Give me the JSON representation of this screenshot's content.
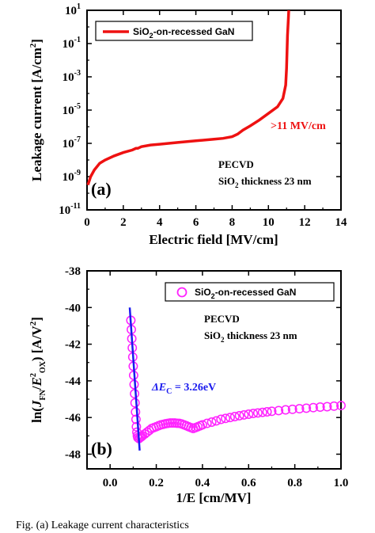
{
  "chart_data": [
    {
      "panel": "(a)",
      "type": "line",
      "xlabel": "Electric field [MV/cm]",
      "ylabel": "Leakage current [A/cm²]",
      "ylabel_parts": [
        "Leakage current [A/cm",
        "2",
        "]"
      ],
      "xlim": [
        0,
        14
      ],
      "ylim_log10": [
        -11,
        1
      ],
      "yscale": "log",
      "x_ticks": [
        "0",
        "2",
        "4",
        "6",
        "8",
        "10",
        "12",
        "14"
      ],
      "y_ticks_exponents": [
        "1",
        "-1",
        "-3",
        "-5",
        "-7",
        "-9",
        "-11"
      ],
      "y_tick_base": "10",
      "legend_position": "top-left",
      "series": [
        {
          "name": "SiO₂-on-recessed GaN",
          "name_parts": [
            "SiO",
            "2",
            "-on-recessed GaN"
          ],
          "color": "#ee1111",
          "x": [
            0.05,
            0.2,
            0.4,
            0.7,
            1.0,
            1.5,
            2.0,
            2.5,
            2.7,
            2.8,
            3.0,
            3.5,
            4.0,
            5.0,
            6.0,
            7.0,
            7.5,
            8.0,
            8.3,
            8.6,
            9.0,
            9.5,
            10.0,
            10.5,
            10.8,
            10.95,
            11.0,
            11.05,
            11.1,
            11.12
          ],
          "log10_y": [
            -9.5,
            -9.0,
            -8.6,
            -8.2,
            -8.0,
            -7.75,
            -7.55,
            -7.4,
            -7.3,
            -7.3,
            -7.2,
            -7.1,
            -7.05,
            -6.95,
            -6.85,
            -6.75,
            -6.7,
            -6.6,
            -6.45,
            -6.2,
            -5.95,
            -5.6,
            -5.2,
            -4.8,
            -4.3,
            -3.5,
            -2.5,
            -0.5,
            0.5,
            1.0
          ]
        }
      ],
      "annotations": {
        "breakdown": ">11 MV/cm",
        "method": "PECVD",
        "thickness_parts": [
          "SiO",
          "2",
          " thickness 23 nm"
        ]
      }
    },
    {
      "panel": "(b)",
      "type": "scatter",
      "xlabel": "1/E [cm/MV]",
      "ylabel": "ln(J_FN/E²_OX) [A/V²]",
      "ylabel_parts": {
        "pre": "ln(",
        "J": "J",
        "J_sub": "FN",
        "slash": "/",
        "E": "E",
        "E_sup": "2",
        "E_sub": "OX",
        "post": ") [A/V",
        "post_sup": "2",
        "end": "]"
      },
      "xlim": [
        -0.1,
        1.0
      ],
      "ylim": [
        -48.8,
        -38
      ],
      "x_ticks": [
        "0.0",
        "0.2",
        "0.4",
        "0.6",
        "0.8",
        "1.0"
      ],
      "y_ticks": [
        "-38",
        "-40",
        "-42",
        "-44",
        "-46",
        "-48"
      ],
      "legend_position": "top-right",
      "series": [
        {
          "name": "SiO₂-on-recessed GaN",
          "name_parts": [
            "SiO",
            "2",
            "-on-recessed GaN"
          ],
          "color": "#ff22ff",
          "marker": "open-circle",
          "x": [
            0.09,
            0.092,
            0.094,
            0.096,
            0.098,
            0.1,
            0.102,
            0.104,
            0.106,
            0.108,
            0.11,
            0.112,
            0.114,
            0.116,
            0.118,
            0.12,
            0.125,
            0.13,
            0.135,
            0.14,
            0.15,
            0.16,
            0.17,
            0.18,
            0.19,
            0.2,
            0.21,
            0.22,
            0.23,
            0.24,
            0.25,
            0.26,
            0.27,
            0.28,
            0.29,
            0.3,
            0.31,
            0.32,
            0.33,
            0.34,
            0.35,
            0.36,
            0.37,
            0.38,
            0.39,
            0.4,
            0.42,
            0.44,
            0.46,
            0.48,
            0.5,
            0.52,
            0.54,
            0.56,
            0.58,
            0.6,
            0.62,
            0.64,
            0.66,
            0.68,
            0.7,
            0.73,
            0.76,
            0.79,
            0.82,
            0.85,
            0.88,
            0.91,
            0.94,
            0.97,
            1.0
          ],
          "y": [
            -40.7,
            -41.2,
            -41.7,
            -42.2,
            -42.7,
            -43.2,
            -43.7,
            -44.2,
            -44.7,
            -45.2,
            -45.7,
            -46.1,
            -46.5,
            -46.8,
            -47.0,
            -47.1,
            -47.15,
            -47.1,
            -47.05,
            -47.0,
            -46.9,
            -46.8,
            -46.7,
            -46.6,
            -46.55,
            -46.5,
            -46.45,
            -46.4,
            -46.37,
            -46.34,
            -46.32,
            -46.3,
            -46.3,
            -46.3,
            -46.31,
            -46.32,
            -46.35,
            -46.4,
            -46.45,
            -46.5,
            -46.55,
            -46.6,
            -46.55,
            -46.5,
            -46.45,
            -46.4,
            -46.32,
            -46.25,
            -46.18,
            -46.1,
            -46.05,
            -46.0,
            -45.95,
            -45.9,
            -45.86,
            -45.82,
            -45.78,
            -45.75,
            -45.72,
            -45.69,
            -45.66,
            -45.62,
            -45.58,
            -45.55,
            -45.52,
            -45.49,
            -45.46,
            -45.43,
            -45.41,
            -45.38,
            -45.35
          ]
        },
        {
          "name": "fit",
          "color": "#1a1aee",
          "x": [
            0.085,
            0.128
          ],
          "y": [
            -40.0,
            -47.8
          ]
        }
      ],
      "annotations": {
        "delta_prefix": "ΔE",
        "delta_sub": "C",
        "delta_value": " = 3.26eV",
        "method": "PECVD",
        "thickness_parts": [
          "SiO",
          "2",
          " thickness 23 nm"
        ]
      }
    }
  ],
  "caption": "Fig. (a) Leakage current characteristics"
}
